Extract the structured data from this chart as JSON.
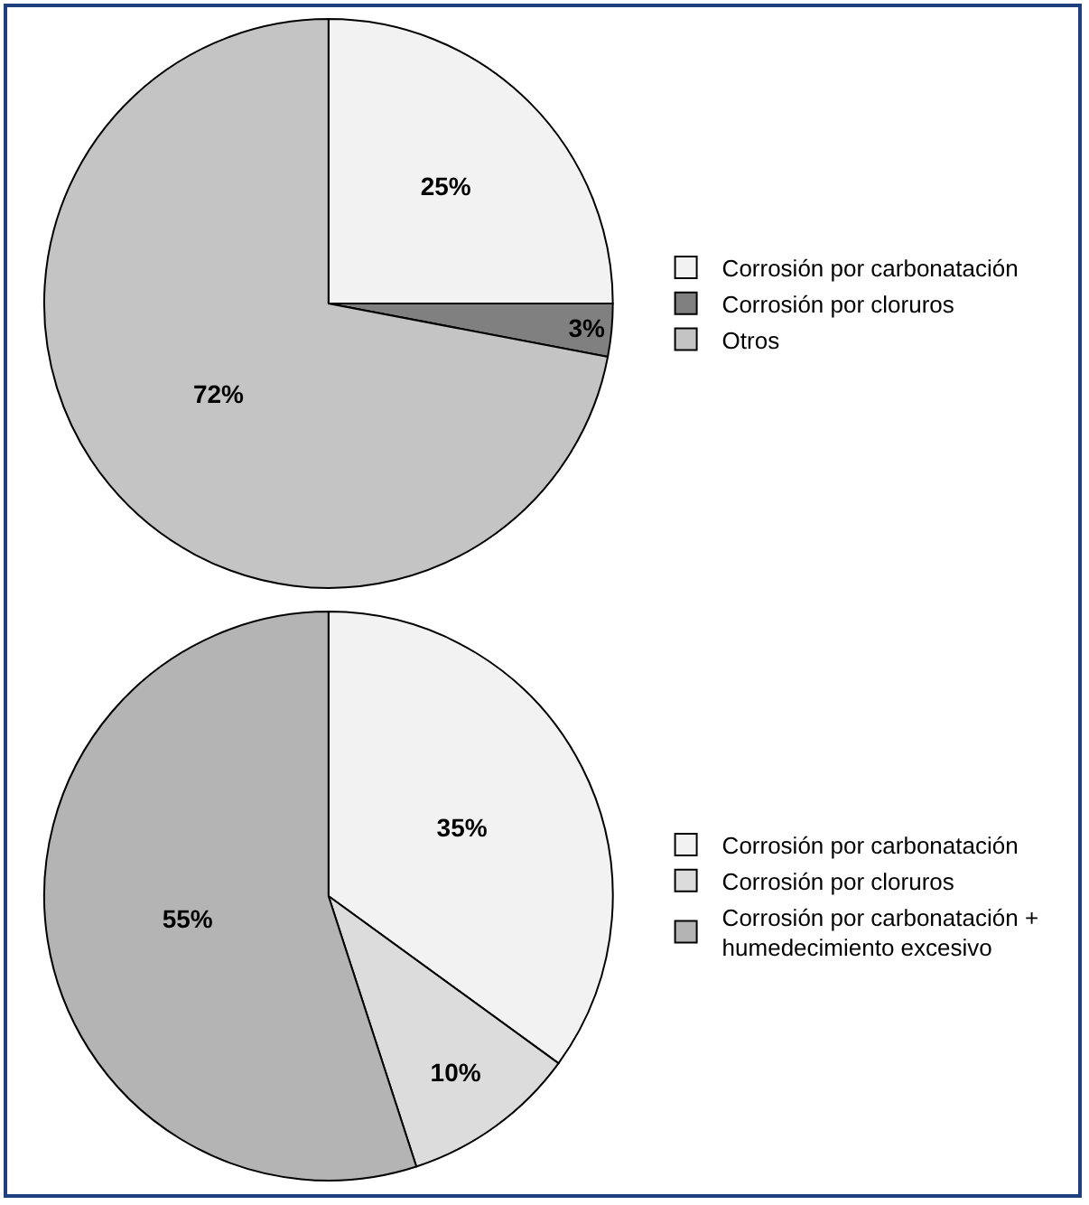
{
  "chart_data": [
    {
      "type": "pie",
      "categories": [
        "Corrosión por carbonatación",
        "Corrosión por cloruros",
        "Otros"
      ],
      "values": [
        25,
        3,
        72
      ],
      "colors": [
        "#f2f2f2",
        "#808080",
        "#c4c4c4"
      ],
      "value_labels": [
        "25%",
        "3%",
        "72%"
      ],
      "legend": "right"
    },
    {
      "type": "pie",
      "categories": [
        "Corrosión por carbonatación",
        "Corrosión por cloruros",
        "Corrosión por carbonatación +\nhumedecimiento excesivo"
      ],
      "values": [
        35,
        10,
        55
      ],
      "colors": [
        "#f2f2f2",
        "#dcdcdc",
        "#b4b4b4"
      ],
      "value_labels": [
        "35%",
        "10%",
        "55%"
      ],
      "legend": "right"
    }
  ]
}
